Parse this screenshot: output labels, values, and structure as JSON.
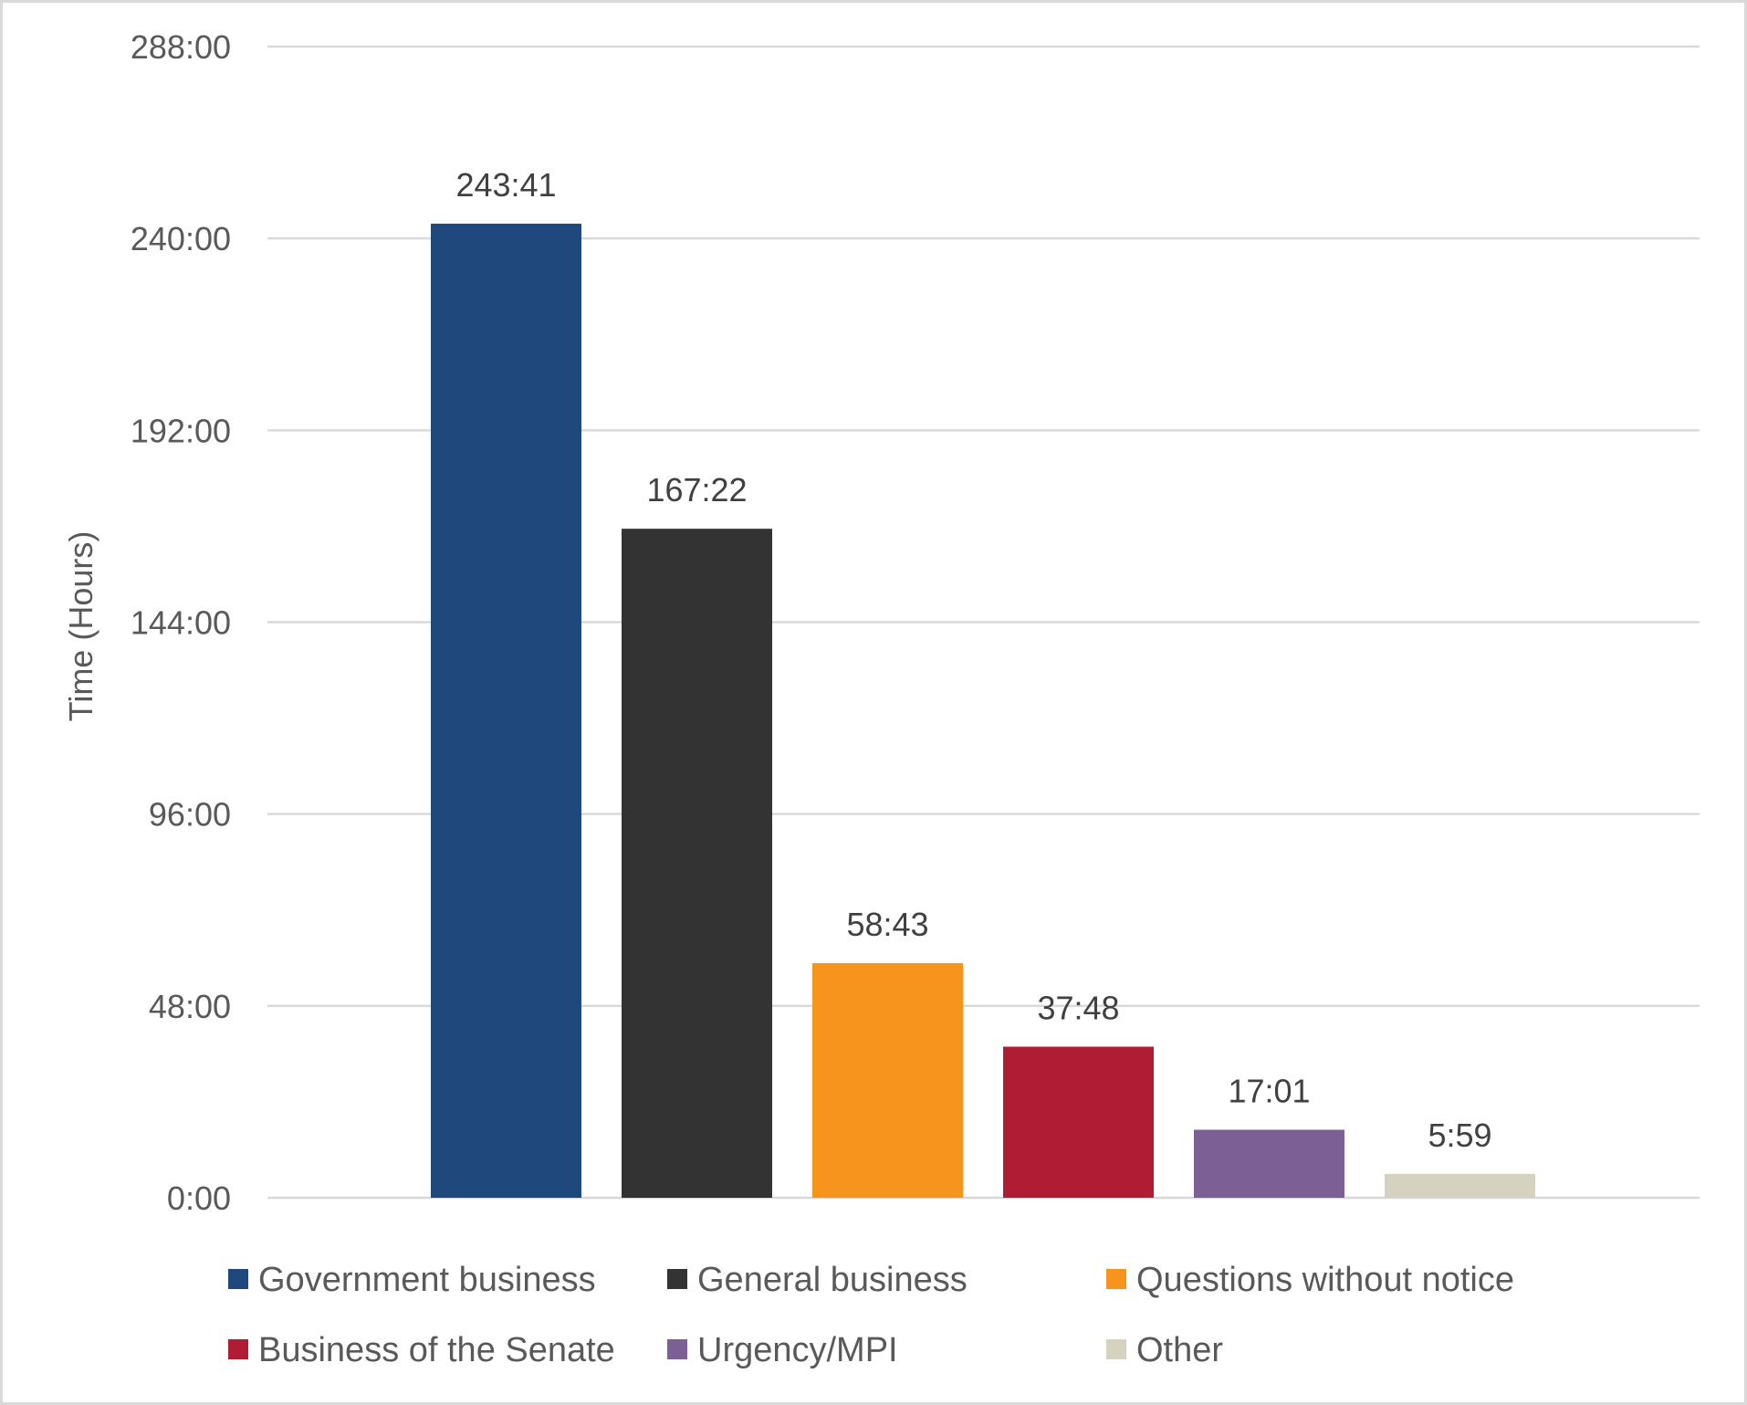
{
  "chart_data": {
    "type": "bar",
    "title": "",
    "xlabel": "",
    "ylabel": "Time (Hours)",
    "ylim_hours": [
      0,
      288
    ],
    "yticks": [
      "0:00",
      "48:00",
      "96:00",
      "144:00",
      "192:00",
      "240:00",
      "288:00"
    ],
    "ytick_values_hours": [
      0,
      48,
      96,
      144,
      192,
      240,
      288
    ],
    "grid": true,
    "legend_position": "bottom",
    "categories": [
      "Government business",
      "General business",
      "Questions without notice",
      "Business of the Senate",
      "Urgency/MPI",
      "Other"
    ],
    "values_hhmm": [
      "243:41",
      "167:22",
      "58:43",
      "37:48",
      "17:01",
      "5:59"
    ],
    "values_hours": [
      243.683,
      167.367,
      58.717,
      37.8,
      17.017,
      5.983
    ],
    "colors": [
      "#1f497d",
      "#333333",
      "#f7941d",
      "#b01c34",
      "#7b5f95",
      "#d5d2bf"
    ]
  }
}
